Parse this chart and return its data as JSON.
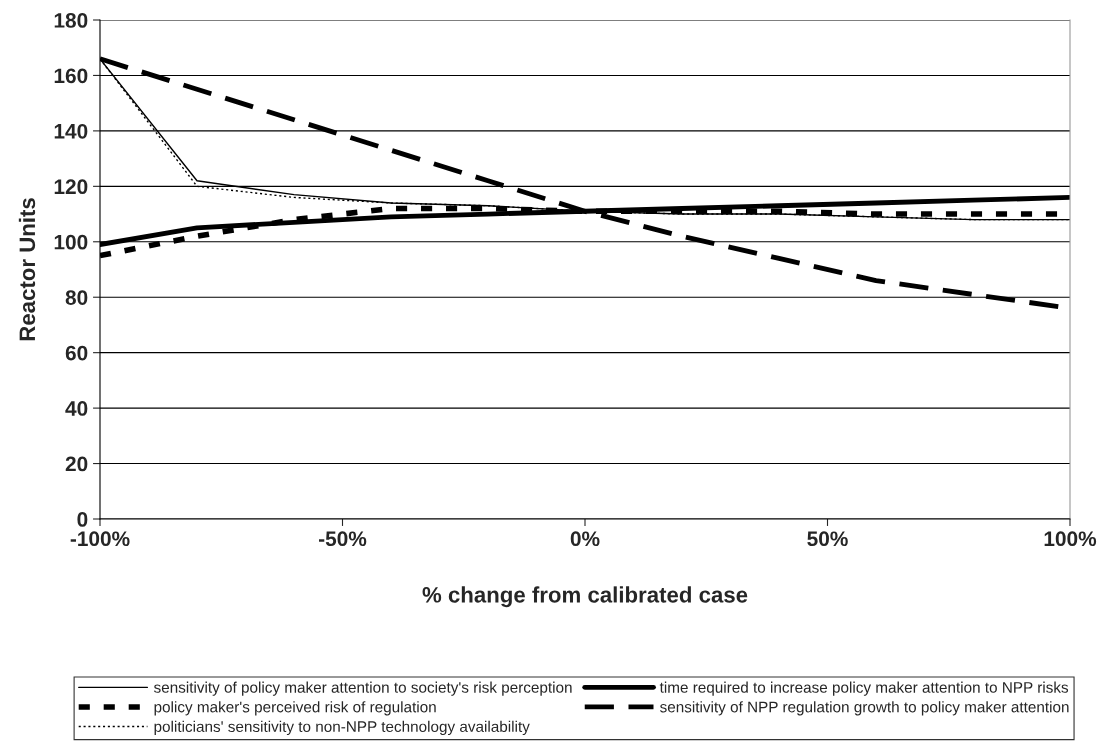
{
  "chart_data": {
    "type": "line",
    "xlabel": "% change from calibrated case",
    "ylabel": "Reactor Units",
    "x": [
      -100,
      -80,
      -60,
      -40,
      -20,
      0,
      20,
      40,
      60,
      80,
      100
    ],
    "series": [
      {
        "name": "sensitivity of policy maker attention to society's risk perception",
        "color": "#000000",
        "line_style": "solid",
        "values": [
          166,
          122,
          117,
          114,
          113,
          111,
          110,
          110,
          109,
          108,
          108
        ]
      },
      {
        "name": "time required to increase policy maker attention to NPP risks",
        "color": "#000000",
        "line_style": "solid",
        "values": [
          99,
          105,
          107,
          109,
          110,
          111,
          112,
          113,
          114,
          115,
          116
        ]
      },
      {
        "name": "policy maker's perceived risk of regulation",
        "color": "#000000",
        "line_style": "dashed",
        "values": [
          95,
          102,
          108,
          112,
          112,
          111,
          111,
          111,
          110,
          110,
          110
        ]
      },
      {
        "name": "sensitivity of NPP regulation growth to policy maker attention",
        "color": "#000000",
        "line_style": "dashed",
        "values": [
          166,
          155,
          144,
          133,
          122,
          111,
          102,
          94,
          86,
          81,
          76
        ]
      },
      {
        "name": "politicians' sensitivity to non-NPP technology availability",
        "color": "#000000",
        "line_style": "dotted",
        "values": [
          166,
          120,
          116,
          114,
          113,
          111,
          110,
          110,
          109,
          108,
          108
        ]
      }
    ],
    "xlim": [
      -100,
      100
    ],
    "xticks": [
      {
        "value": -100,
        "label": "-100%"
      },
      {
        "value": -50,
        "label": "-50%"
      },
      {
        "value": 0,
        "label": "0%"
      },
      {
        "value": 50,
        "label": "50%"
      },
      {
        "value": 100,
        "label": "100%"
      }
    ],
    "ylim": [
      0,
      180
    ],
    "yticks": [
      0,
      20,
      40,
      60,
      80,
      100,
      120,
      140,
      160,
      180
    ],
    "grid": "y",
    "legend": "bottom",
    "marker": "none"
  }
}
